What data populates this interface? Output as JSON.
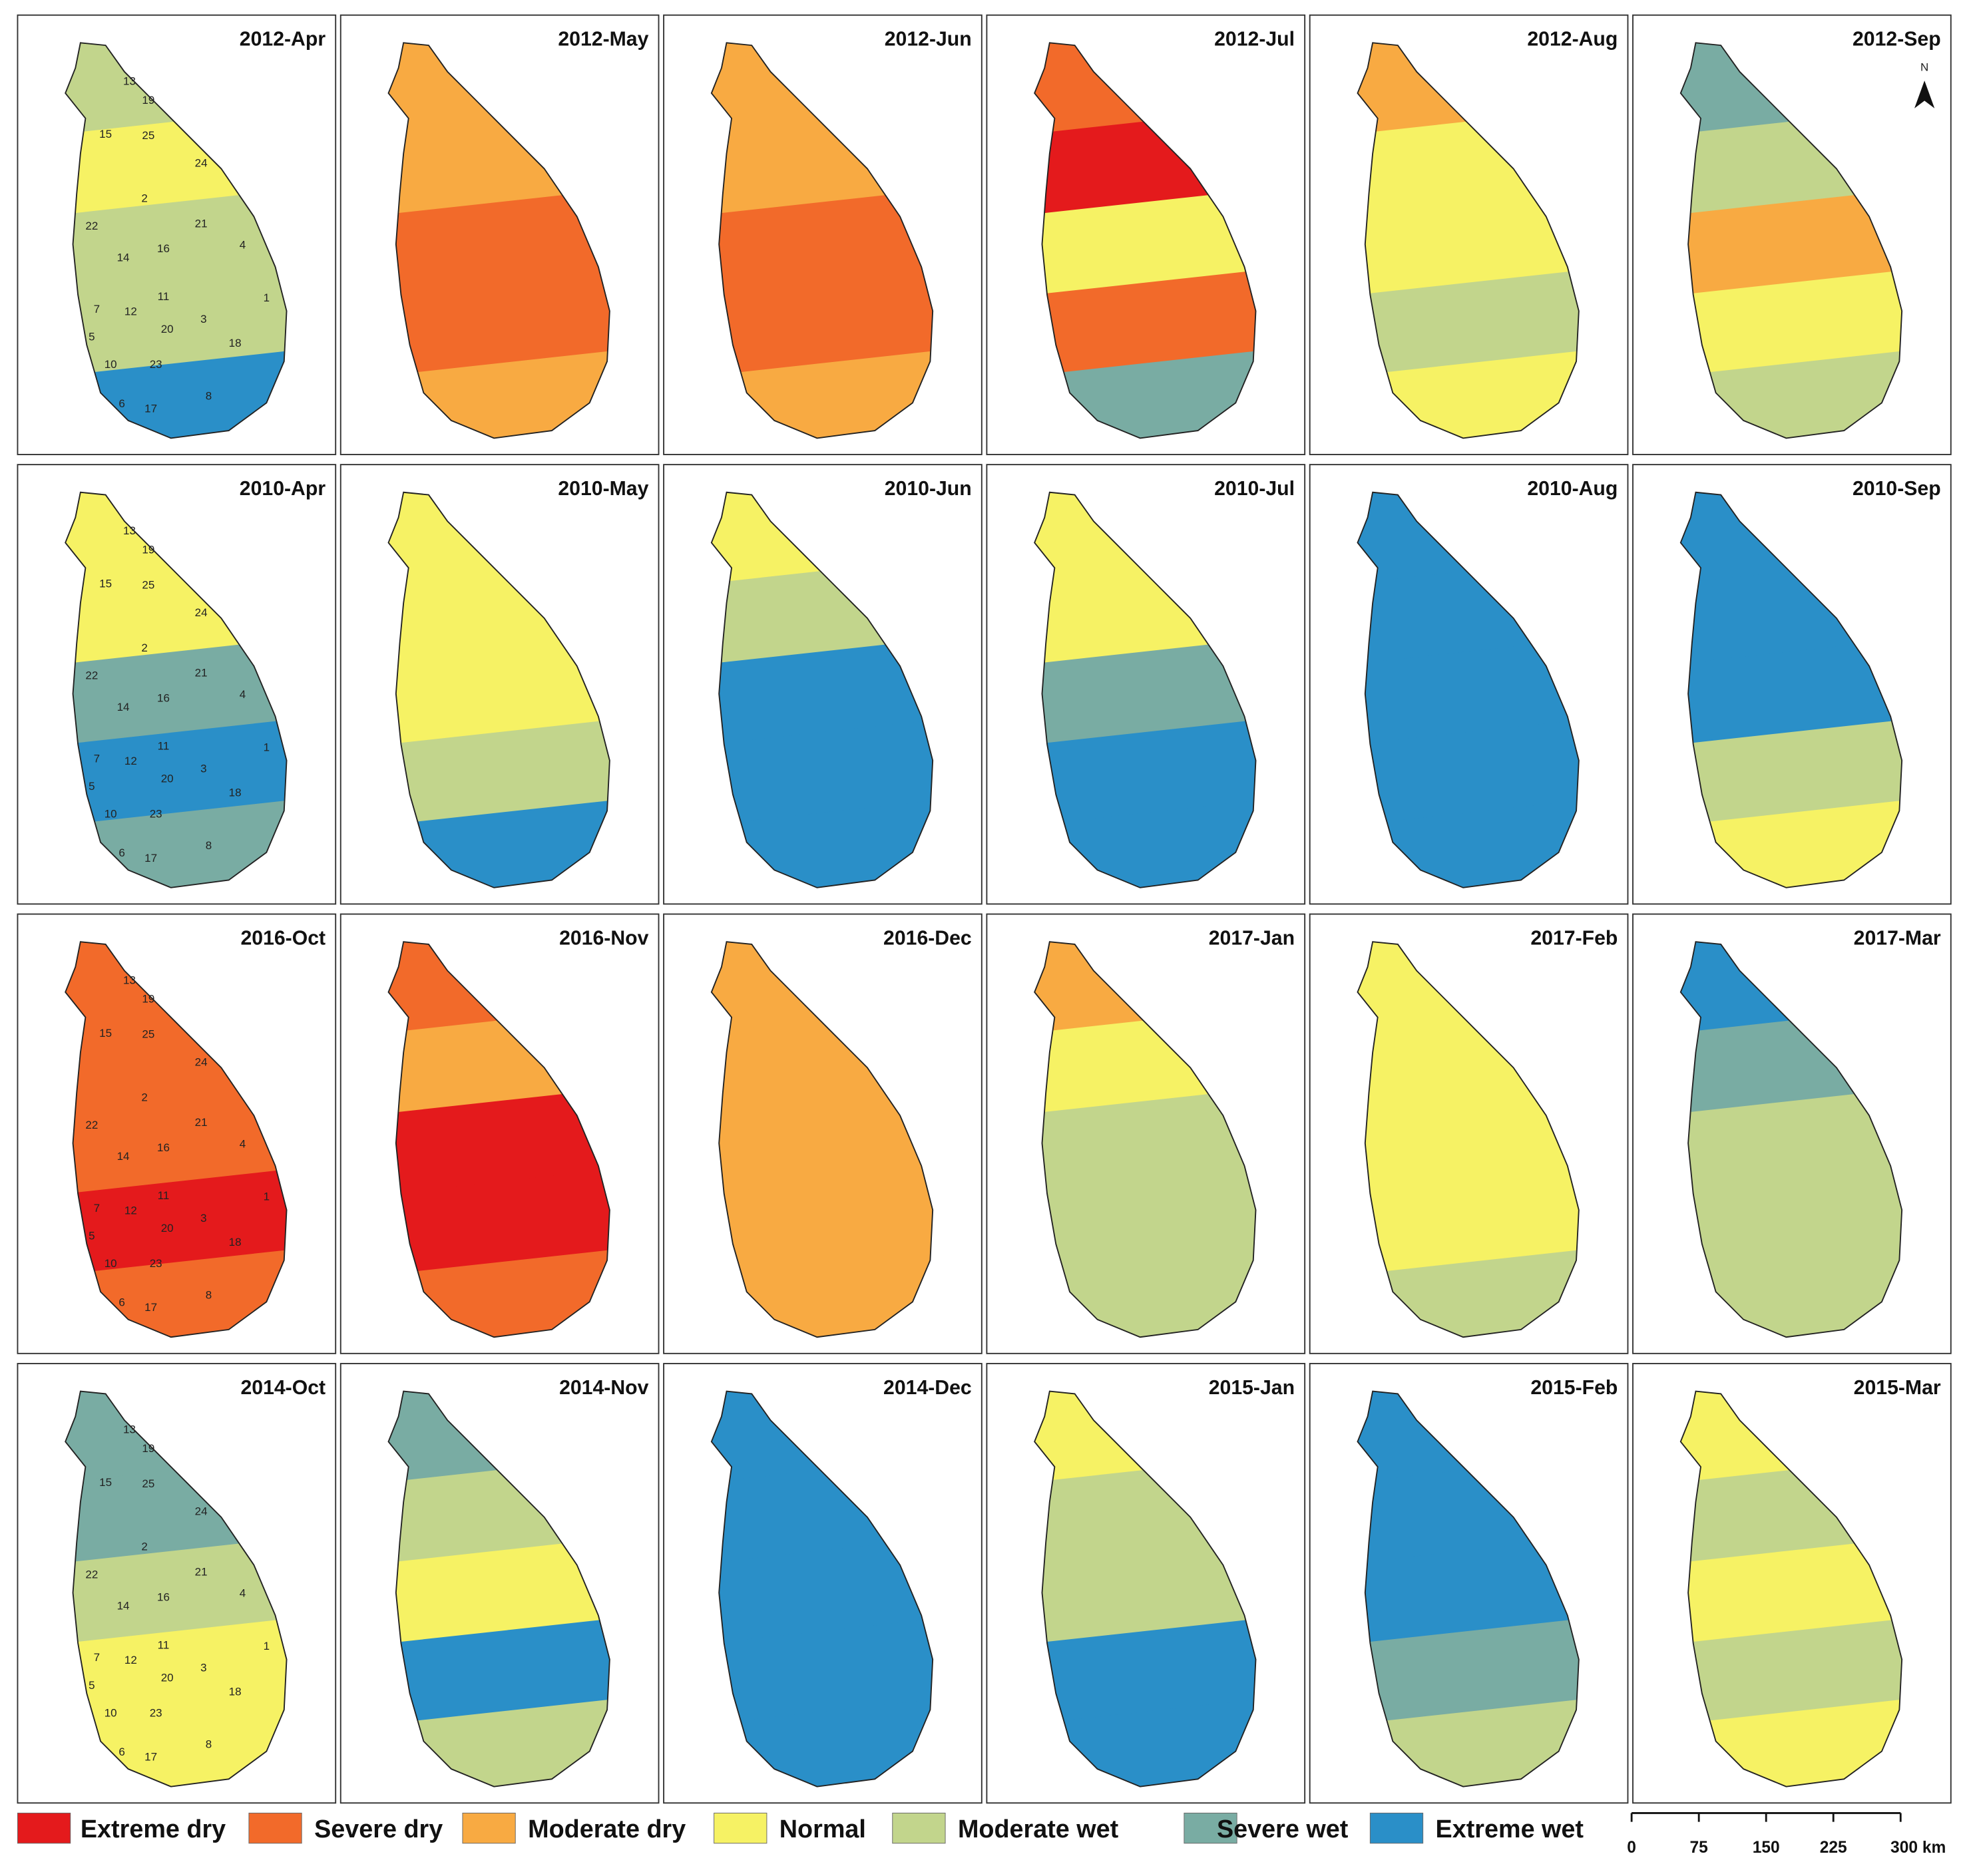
{
  "panels": [
    "2012-Apr",
    "2012-May",
    "2012-Jun",
    "2012-Jul",
    "2012-Aug",
    "2012-Sep",
    "2010-Apr",
    "2010-May",
    "2010-Jun",
    "2010-Jul",
    "2010-Aug",
    "2010-Sep",
    "2016-Oct",
    "2016-Nov",
    "2016-Dec",
    "2017-Jan",
    "2017-Feb",
    "2017-Mar",
    "2014-Oct",
    "2014-Nov",
    "2014-Dec",
    "2015-Jan",
    "2015-Feb",
    "2015-Mar"
  ],
  "districts": [
    13,
    19,
    15,
    25,
    24,
    2,
    21,
    22,
    4,
    14,
    16,
    11,
    1,
    7,
    12,
    3,
    20,
    5,
    18,
    10,
    23,
    8,
    6,
    17
  ],
  "legend": [
    {
      "label": "Extreme dry",
      "color": "#e41a1c"
    },
    {
      "label": "Severe dry",
      "color": "#f26a2a"
    },
    {
      "label": "Moderate dry",
      "color": "#f8aa42"
    },
    {
      "label": "Normal",
      "color": "#f6f264"
    },
    {
      "label": "Moderate wet",
      "color": "#c2d58c"
    },
    {
      "label": "Severe wet",
      "color": "#79aca3"
    },
    {
      "label": "Extreme wet",
      "color": "#2a8fc8"
    }
  ],
  "scale_bar": {
    "ticks": [
      0,
      75,
      150,
      225,
      {
        "value": 300,
        "label": "300 km"
      }
    ]
  },
  "north": "N"
}
